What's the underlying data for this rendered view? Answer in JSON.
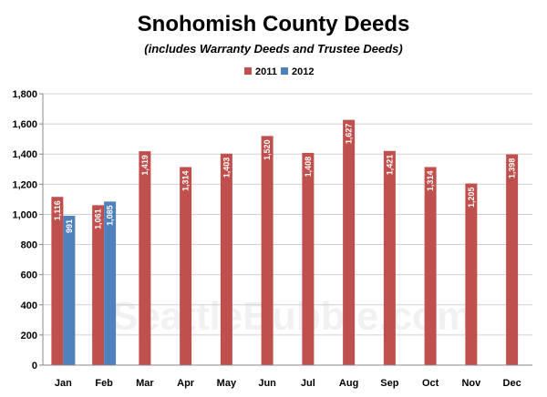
{
  "chart_data": {
    "type": "bar",
    "title": "Snohomish County Deeds",
    "subtitle": "(includes Warranty Deeds and Trustee Deeds)",
    "categories": [
      "Jan",
      "Feb",
      "Mar",
      "Apr",
      "May",
      "Jun",
      "Jul",
      "Aug",
      "Sep",
      "Oct",
      "Nov",
      "Dec"
    ],
    "series": [
      {
        "name": "2011",
        "color": "#c0504d",
        "values": [
          1116,
          1061,
          1419,
          1314,
          1403,
          1520,
          1408,
          1627,
          1421,
          1314,
          1205,
          1398
        ],
        "labels": [
          "1,116",
          "1,061",
          "1,419",
          "1,314",
          "1,403",
          "1,520",
          "1,408",
          "1,627",
          "1,421",
          "1,314",
          "1,205",
          "1,398"
        ]
      },
      {
        "name": "2012",
        "color": "#4f81bd",
        "values": [
          991,
          1085,
          null,
          null,
          null,
          null,
          null,
          null,
          null,
          null,
          null,
          null
        ],
        "labels": [
          "991",
          "1,085",
          null,
          null,
          null,
          null,
          null,
          null,
          null,
          null,
          null,
          null
        ]
      }
    ],
    "ylim": [
      0,
      1800
    ],
    "yticks": [
      0,
      200,
      400,
      600,
      800,
      1000,
      1200,
      1400,
      1600,
      1800
    ],
    "ytick_labels": [
      "0",
      "200",
      "400",
      "600",
      "800",
      "1,000",
      "1,200",
      "1,400",
      "1,600",
      "1,800"
    ],
    "grid": true,
    "legend_position": "top-right",
    "watermark": "SeattleBubble.com"
  }
}
